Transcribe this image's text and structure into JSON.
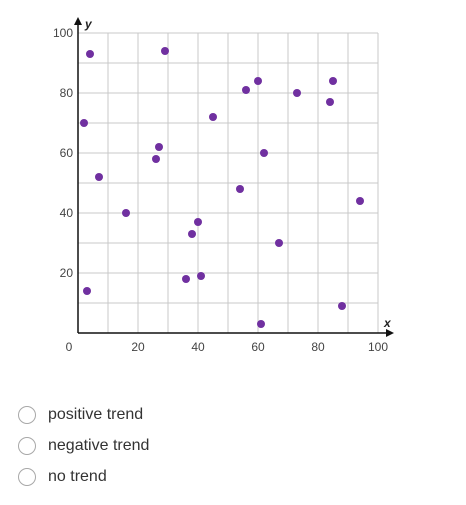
{
  "chart_data": {
    "type": "scatter",
    "xlabel": "x",
    "ylabel": "y",
    "xlim": [
      0,
      100
    ],
    "ylim": [
      0,
      100
    ],
    "x_ticks": [
      0,
      20,
      40,
      60,
      80,
      100
    ],
    "y_ticks": [
      20,
      40,
      60,
      80,
      100
    ],
    "grid": true,
    "point_color": "#7030a0",
    "points": [
      {
        "x": 2,
        "y": 70
      },
      {
        "x": 4,
        "y": 93
      },
      {
        "x": 3,
        "y": 14
      },
      {
        "x": 7,
        "y": 52
      },
      {
        "x": 16,
        "y": 40
      },
      {
        "x": 26,
        "y": 58
      },
      {
        "x": 27,
        "y": 62
      },
      {
        "x": 29,
        "y": 94
      },
      {
        "x": 36,
        "y": 18
      },
      {
        "x": 38,
        "y": 33
      },
      {
        "x": 40,
        "y": 37
      },
      {
        "x": 41,
        "y": 19
      },
      {
        "x": 45,
        "y": 72
      },
      {
        "x": 54,
        "y": 48
      },
      {
        "x": 56,
        "y": 81
      },
      {
        "x": 60,
        "y": 84
      },
      {
        "x": 61,
        "y": 3
      },
      {
        "x": 62,
        "y": 60
      },
      {
        "x": 67,
        "y": 30
      },
      {
        "x": 73,
        "y": 80
      },
      {
        "x": 84,
        "y": 77
      },
      {
        "x": 85,
        "y": 84
      },
      {
        "x": 88,
        "y": 9
      },
      {
        "x": 94,
        "y": 44
      }
    ]
  },
  "options": [
    {
      "label": "positive trend"
    },
    {
      "label": "negative trend"
    },
    {
      "label": "no trend"
    }
  ]
}
